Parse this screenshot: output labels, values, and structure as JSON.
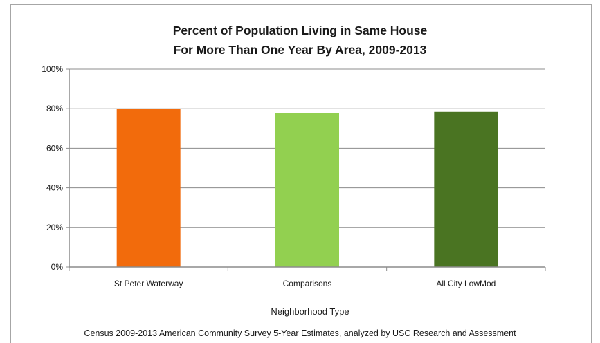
{
  "chart_data": {
    "type": "bar",
    "title": [
      "Percent of Population Living in Same House",
      "For More Than One Year By Area, 2009-2013"
    ],
    "categories": [
      "St Peter Waterway",
      "Comparisons",
      "All City LowMod"
    ],
    "values": [
      79.8,
      77.8,
      78.4
    ],
    "unit": "%",
    "colors": [
      "#f26b0c",
      "#92d050",
      "#4a7422"
    ],
    "xlabel": "Neighborhood Type",
    "ylabel": "",
    "ylim": [
      0,
      100
    ],
    "yticks": [
      0,
      20,
      40,
      60,
      80,
      100
    ],
    "ytick_labels": [
      "0%",
      "20%",
      "40%",
      "60%",
      "80%",
      "100%"
    ],
    "grid": true,
    "legend": "none"
  },
  "source_note": "Census 2009-2013 American Community Survey 5-Year Estimates, analyzed by USC Research and Assessment"
}
